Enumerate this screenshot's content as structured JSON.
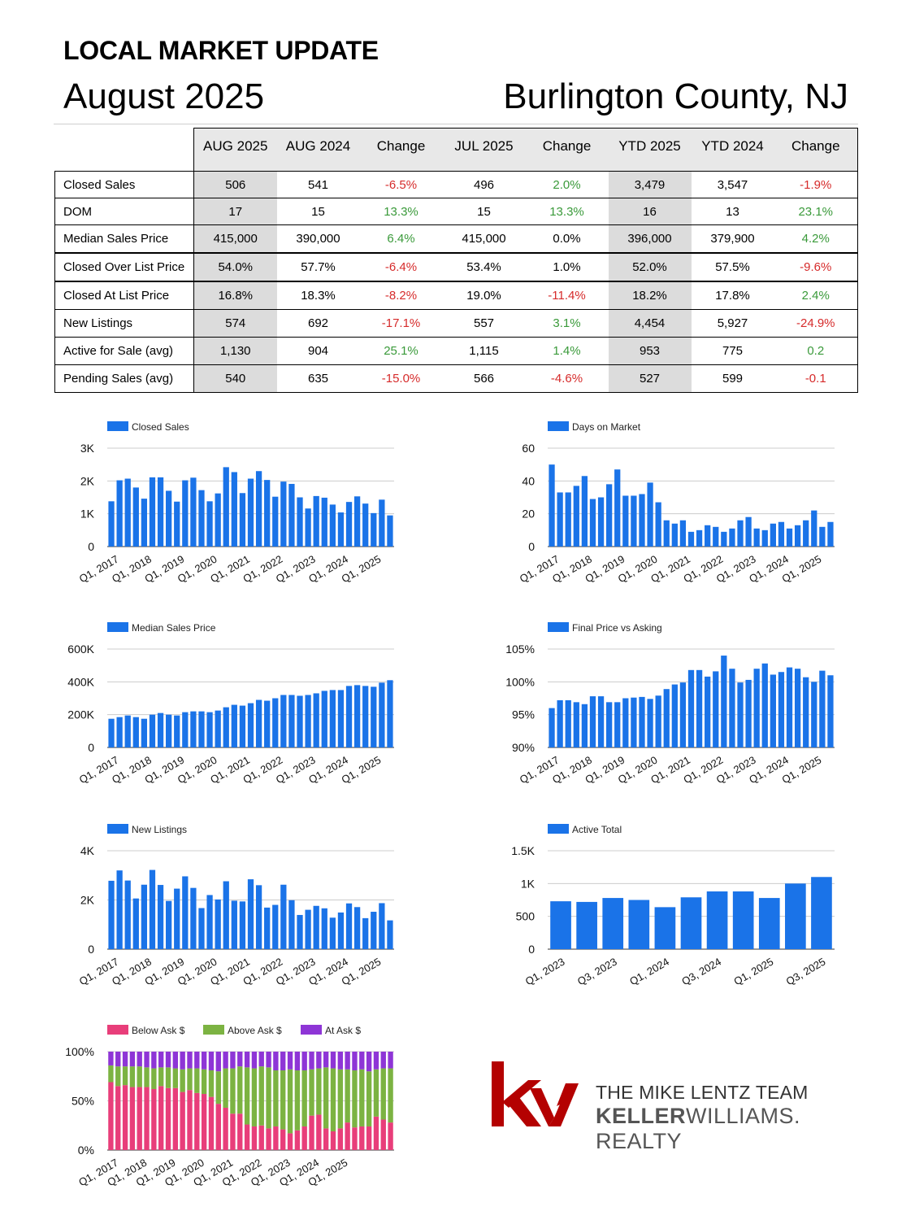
{
  "header": {
    "title": "LOCAL MARKET UPDATE",
    "date": "August 2025",
    "location": "Burlington County, NJ"
  },
  "table": {
    "columns": [
      "AUG 2025",
      "AUG 2024",
      "Change",
      "JUL 2025",
      "Change",
      "YTD 2025",
      "YTD 2024",
      "Change"
    ],
    "rows": [
      {
        "label": "Closed Sales",
        "cells": [
          "506",
          "541",
          "-6.5%",
          "496",
          "2.0%",
          "3,479",
          "3,547",
          "-1.9%"
        ],
        "tones": [
          "",
          "",
          "neg",
          "",
          "pos",
          "",
          "",
          "neg"
        ]
      },
      {
        "label": "DOM",
        "cells": [
          "17",
          "15",
          "13.3%",
          "15",
          "13.3%",
          "16",
          "13",
          "23.1%"
        ],
        "tones": [
          "",
          "",
          "pos",
          "",
          "pos",
          "",
          "",
          "pos"
        ]
      },
      {
        "label": "Median Sales Price",
        "cells": [
          "415,000",
          "390,000",
          "6.4%",
          "415,000",
          "0.0%",
          "396,000",
          "379,900",
          "4.2%"
        ],
        "tones": [
          "",
          "",
          "pos",
          "",
          "neu",
          "",
          "",
          "pos"
        ]
      },
      {
        "label": "Closed Over List Price",
        "cells": [
          "54.0%",
          "57.7%",
          "-6.4%",
          "53.4%",
          "1.0%",
          "52.0%",
          "57.5%",
          "-9.6%"
        ],
        "tones": [
          "",
          "",
          "neg",
          "",
          "neu",
          "",
          "",
          "neg"
        ]
      },
      {
        "label": "Closed At List Price",
        "cells": [
          "16.8%",
          "18.3%",
          "-8.2%",
          "19.0%",
          "-11.4%",
          "18.2%",
          "17.8%",
          "2.4%"
        ],
        "tones": [
          "",
          "",
          "neg",
          "",
          "neg",
          "",
          "",
          "pos"
        ]
      },
      {
        "label": "New Listings",
        "cells": [
          "574",
          "692",
          "-17.1%",
          "557",
          "3.1%",
          "4,454",
          "5,927",
          "-24.9%"
        ],
        "tones": [
          "",
          "",
          "neg",
          "",
          "pos",
          "",
          "",
          "neg"
        ]
      },
      {
        "label": "Active for Sale (avg)",
        "cells": [
          "1,130",
          "904",
          "25.1%",
          "1,115",
          "1.4%",
          "953",
          "775",
          "0.2"
        ],
        "tones": [
          "",
          "",
          "pos",
          "",
          "pos",
          "",
          "",
          "pos"
        ]
      },
      {
        "label": "Pending Sales (avg)",
        "cells": [
          "540",
          "635",
          "-15.0%",
          "566",
          "-4.6%",
          "527",
          "599",
          "-0.1"
        ],
        "tones": [
          "",
          "",
          "neg",
          "",
          "neg",
          "",
          "",
          "neg"
        ]
      }
    ]
  },
  "colors": {
    "bar": "#1a73e8",
    "positive": "#3a9a3a",
    "negative": "#d62b2b",
    "below_ask": "#e83e7a",
    "above_ask": "#7cb342",
    "at_ask": "#8e35d6",
    "kw_red": "#b40101"
  },
  "chart_data": [
    {
      "id": "closed-sales",
      "type": "bar",
      "legend": [
        "Closed Sales"
      ],
      "x_tick_labels": [
        "Q1, 2017",
        "Q1, 2018",
        "Q1, 2019",
        "Q1, 2020",
        "Q1, 2021",
        "Q1, 2022",
        "Q1, 2023",
        "Q1, 2024",
        "Q1, 2025"
      ],
      "y_ticks": [
        "0",
        "1K",
        "2K",
        "3K"
      ],
      "ylim": [
        0,
        3000
      ],
      "values": [
        1380,
        2020,
        2070,
        1800,
        1460,
        2110,
        2110,
        1700,
        1370,
        2020,
        2100,
        1720,
        1380,
        1620,
        2420,
        2270,
        1630,
        2070,
        2300,
        2030,
        1520,
        1980,
        1910,
        1500,
        1160,
        1540,
        1490,
        1280,
        1040,
        1360,
        1530,
        1310,
        1020,
        1430,
        950
      ]
    },
    {
      "id": "days-on-market",
      "type": "bar",
      "legend": [
        "Days on Market"
      ],
      "x_tick_labels": [
        "Q1, 2017",
        "Q1, 2018",
        "Q1, 2019",
        "Q1, 2020",
        "Q1, 2021",
        "Q1, 2022",
        "Q1, 2023",
        "Q1, 2024",
        "Q1, 2025"
      ],
      "y_ticks": [
        "0",
        "20",
        "40",
        "60"
      ],
      "ylim": [
        0,
        60
      ],
      "values": [
        50,
        33,
        33,
        37,
        43,
        29,
        30,
        38,
        47,
        31,
        31,
        32,
        39,
        27,
        16,
        14,
        16,
        9,
        10,
        13,
        12,
        9,
        11,
        16,
        18,
        11,
        10,
        14,
        15,
        11,
        13,
        16,
        22,
        12,
        15
      ]
    },
    {
      "id": "median-sales-price",
      "type": "bar",
      "legend": [
        "Median Sales Price"
      ],
      "x_tick_labels": [
        "Q1, 2017",
        "Q1, 2018",
        "Q1, 2019",
        "Q1, 2020",
        "Q1, 2021",
        "Q1, 2022",
        "Q1, 2023",
        "Q1, 2024",
        "Q1, 2025"
      ],
      "y_ticks": [
        "0",
        "200K",
        "400K",
        "600K"
      ],
      "ylim": [
        0,
        600000
      ],
      "values": [
        175000,
        185000,
        195000,
        185000,
        175000,
        200000,
        210000,
        200000,
        195000,
        215000,
        220000,
        220000,
        215000,
        225000,
        245000,
        260000,
        255000,
        270000,
        290000,
        285000,
        300000,
        320000,
        320000,
        315000,
        320000,
        330000,
        345000,
        350000,
        350000,
        375000,
        380000,
        375000,
        370000,
        395000,
        410000
      ]
    },
    {
      "id": "final-price-vs-asking",
      "type": "bar",
      "legend": [
        "Final Price vs Asking"
      ],
      "x_tick_labels": [
        "Q1, 2017",
        "Q1, 2018",
        "Q1, 2019",
        "Q1, 2020",
        "Q1, 2021",
        "Q1, 2022",
        "Q1, 2023",
        "Q1, 2024",
        "Q1, 2025"
      ],
      "y_ticks": [
        "90%",
        "95%",
        "100%",
        "105%"
      ],
      "ylim": [
        90,
        105
      ],
      "values": [
        96.0,
        97.2,
        97.2,
        96.9,
        96.6,
        97.8,
        97.8,
        96.9,
        96.9,
        97.5,
        97.6,
        97.7,
        97.4,
        97.9,
        98.9,
        99.6,
        99.9,
        101.8,
        101.8,
        100.8,
        101.6,
        104.0,
        102.0,
        99.9,
        100.3,
        102.0,
        102.8,
        101.1,
        101.5,
        102.2,
        102.0,
        100.7,
        100.0,
        101.7,
        101.0
      ]
    },
    {
      "id": "new-listings",
      "type": "bar",
      "legend": [
        "New Listings"
      ],
      "x_tick_labels": [
        "Q1, 2017",
        "Q1, 2018",
        "Q1, 2019",
        "Q1, 2020",
        "Q1, 2021",
        "Q1, 2022",
        "Q1, 2023",
        "Q1, 2024",
        "Q1, 2025"
      ],
      "y_ticks": [
        "0",
        "2K",
        "4K"
      ],
      "ylim": [
        0,
        4000
      ],
      "values": [
        2780,
        3200,
        2790,
        2060,
        2620,
        3220,
        2610,
        1960,
        2460,
        2960,
        2490,
        1670,
        2200,
        2020,
        2760,
        1970,
        1940,
        2840,
        2600,
        1690,
        1800,
        2620,
        1990,
        1390,
        1600,
        1760,
        1660,
        1280,
        1490,
        1860,
        1710,
        1260,
        1520,
        1870,
        1170
      ]
    },
    {
      "id": "active-total",
      "type": "bar",
      "legend": [
        "Active Total"
      ],
      "categories": [
        "Q1, 2023",
        "Q2, 2023",
        "Q3, 2023",
        "Q4, 2023",
        "Q1, 2024",
        "Q2, 2024",
        "Q3, 2024",
        "Q4, 2024",
        "Q1, 2025",
        "Q2, 2025",
        "Q3, 2025"
      ],
      "x_tick_labels": [
        "Q1, 2023",
        "Q3, 2023",
        "Q1, 2024",
        "Q3, 2024",
        "Q1, 2025",
        "Q3, 2025"
      ],
      "y_ticks": [
        "0",
        "500",
        "1K",
        "1.5K"
      ],
      "ylim": [
        0,
        1500
      ],
      "values": [
        730,
        720,
        780,
        750,
        640,
        790,
        880,
        880,
        780,
        1000,
        1100
      ]
    },
    {
      "id": "sale-vs-ask-share",
      "type": "bar",
      "stacked": true,
      "legend": [
        "Below Ask $",
        "Above Ask $",
        "At Ask $"
      ],
      "x_tick_labels": [
        "Q1, 2017",
        "Q1, 2018",
        "Q1, 2019",
        "Q1, 2020",
        "Q1, 2021",
        "Q1, 2022",
        "Q1, 2023",
        "Q1, 2024",
        "Q1, 2025"
      ],
      "y_ticks": [
        "0%",
        "50%",
        "100%"
      ],
      "ylim": [
        0,
        100
      ],
      "series": [
        {
          "name": "Below Ask $",
          "values": [
            69,
            65,
            66,
            64,
            64,
            64,
            62,
            65,
            63,
            63,
            59,
            61,
            58,
            57,
            54,
            47,
            43,
            37,
            37,
            26,
            24,
            25,
            22,
            24,
            21,
            17,
            20,
            24,
            35,
            36,
            22,
            19,
            22,
            28,
            23,
            24,
            24,
            34,
            31,
            28
          ]
        },
        {
          "name": "Above Ask $",
          "values": [
            17,
            20,
            19,
            21,
            21,
            20,
            21,
            19,
            21,
            20,
            23,
            22,
            25,
            25,
            27,
            33,
            40,
            46,
            48,
            58,
            59,
            60,
            62,
            57,
            60,
            65,
            61,
            57,
            47,
            47,
            62,
            64,
            60,
            54,
            58,
            58,
            56,
            48,
            52,
            55
          ]
        },
        {
          "name": "At Ask $",
          "values": [
            14,
            15,
            15,
            15,
            15,
            16,
            17,
            16,
            16,
            17,
            18,
            17,
            17,
            18,
            19,
            20,
            17,
            17,
            15,
            16,
            17,
            15,
            16,
            19,
            19,
            18,
            19,
            19,
            18,
            17,
            16,
            17,
            18,
            18,
            19,
            18,
            20,
            18,
            17,
            17
          ]
        }
      ]
    }
  ],
  "logo": {
    "mark": "kw",
    "team": "THE MIKE LENTZ TEAM",
    "brand_bold": "KELLER",
    "brand_thin": "WILLIAMS. REALTY"
  }
}
